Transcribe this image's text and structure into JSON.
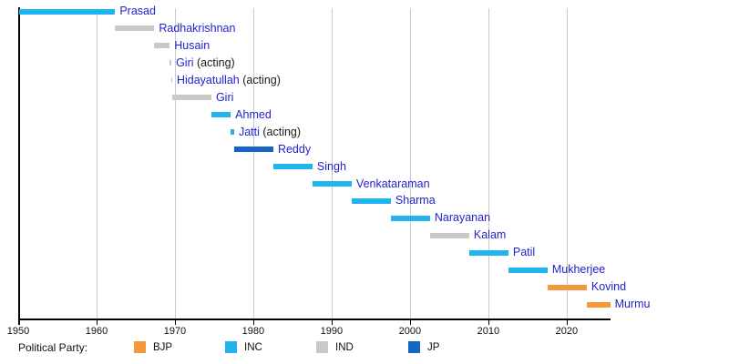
{
  "colors": {
    "link_text": "#2222cc",
    "plain_text": "#1a1a1a",
    "gridline": "#c9c9c9",
    "axis": "#000000",
    "background": "#ffffff"
  },
  "chart_data": {
    "type": "timeline",
    "description": "Terms of Presidents of India shown as horizontal bars colored by political party",
    "axis": {
      "x_min": 1950,
      "x_max": 2025.6,
      "ticks": [
        1950,
        1960,
        1970,
        1980,
        1990,
        2000,
        2010,
        2020
      ],
      "tick_labels": [
        "1950",
        "1960",
        "1970",
        "1980",
        "1990",
        "2000",
        "2010",
        "2020"
      ],
      "gridlines": [
        1960,
        1970,
        1980,
        1990,
        2000,
        2010,
        2020
      ],
      "grid": true
    },
    "parties": {
      "BJP": "#f5983a",
      "INC": "#20b4ee",
      "IND": "#c9c9c9",
      "JP": "#1565c4"
    },
    "rows": [
      {
        "label": "Prasad",
        "suffix": "",
        "party": "INC",
        "start": 1950.07,
        "end": 1962.37
      },
      {
        "label": "Radhakrishnan",
        "suffix": "",
        "party": "IND",
        "start": 1962.37,
        "end": 1967.37
      },
      {
        "label": "Husain",
        "suffix": "",
        "party": "IND",
        "start": 1967.37,
        "end": 1969.34
      },
      {
        "label": "Giri",
        "suffix": " (acting)",
        "party": "IND",
        "start": 1969.34,
        "end": 1969.55
      },
      {
        "label": "Hidayatullah",
        "suffix": " (acting)",
        "party": "IND",
        "start": 1969.55,
        "end": 1969.65
      },
      {
        "label": "Giri",
        "suffix": "",
        "party": "IND",
        "start": 1969.65,
        "end": 1974.65
      },
      {
        "label": "Ahmed",
        "suffix": "",
        "party": "INC",
        "start": 1974.65,
        "end": 1977.12
      },
      {
        "label": "Jatti",
        "suffix": " (acting)",
        "party": "INC",
        "start": 1977.12,
        "end": 1977.56
      },
      {
        "label": "Reddy",
        "suffix": "",
        "party": "JP",
        "start": 1977.56,
        "end": 1982.56
      },
      {
        "label": "Singh",
        "suffix": "",
        "party": "INC",
        "start": 1982.56,
        "end": 1987.56
      },
      {
        "label": "Venkataraman",
        "suffix": "",
        "party": "INC",
        "start": 1987.56,
        "end": 1992.56
      },
      {
        "label": "Sharma",
        "suffix": "",
        "party": "INC",
        "start": 1992.56,
        "end": 1997.56
      },
      {
        "label": "Narayanan",
        "suffix": "",
        "party": "INC",
        "start": 1997.56,
        "end": 2002.56
      },
      {
        "label": "Kalam",
        "suffix": "",
        "party": "IND",
        "start": 2002.56,
        "end": 2007.56
      },
      {
        "label": "Patil",
        "suffix": "",
        "party": "INC",
        "start": 2007.56,
        "end": 2012.56
      },
      {
        "label": "Mukherjee",
        "suffix": "",
        "party": "INC",
        "start": 2012.56,
        "end": 2017.56
      },
      {
        "label": "Kovind",
        "suffix": "",
        "party": "BJP",
        "start": 2017.56,
        "end": 2022.56
      },
      {
        "label": "Murmu",
        "suffix": "",
        "party": "BJP",
        "start": 2022.56,
        "end": 2025.55
      }
    ],
    "legend": {
      "title": "Political Party:",
      "position": "bottom",
      "entries": [
        {
          "label": "BJP"
        },
        {
          "label": "INC"
        },
        {
          "label": "IND"
        },
        {
          "label": "JP"
        }
      ]
    }
  }
}
